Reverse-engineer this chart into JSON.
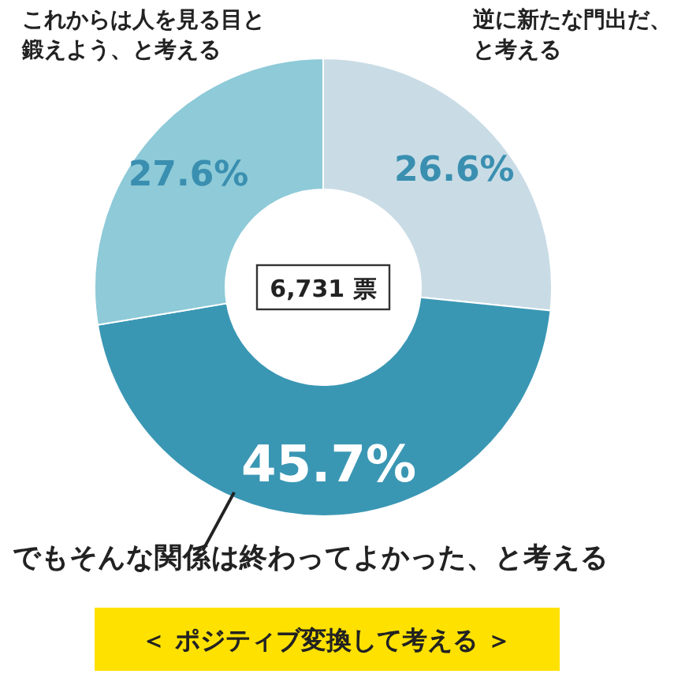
{
  "chart_data": {
    "type": "donut",
    "categories": [
      "逆に新たな門出だ、と考える",
      "でもそんな関係は終わってよかった、と考える",
      "これからは人を見る目と鍛えよう、と考える"
    ],
    "values": [
      26.6,
      45.7,
      27.6
    ],
    "colors": [
      "#c9dce6",
      "#3a97b4",
      "#8ecad8"
    ],
    "value_labels": [
      "26.6%",
      "45.7%",
      "27.6%"
    ],
    "annotations": [
      "6,731 票",
      "＜ ポジティブ変換して考える ＞"
    ]
  }
}
